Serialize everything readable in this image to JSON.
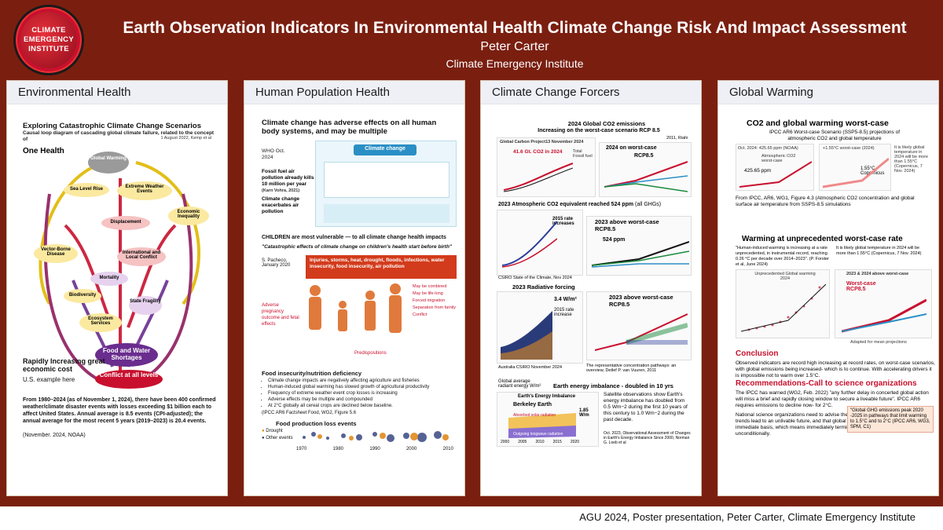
{
  "header": {
    "logo_text": [
      "CLIMATE",
      "EMERGENCY",
      "INSTITUTE"
    ],
    "title": "Earth Observation Indicators In Environmental Health Climate Change Risk And Impact Assessment",
    "author": "Peter Carter",
    "institute": "Climate Emergency Institute"
  },
  "panels": {
    "env": {
      "title": "Environmental Health",
      "heading": "Exploring Catastrophic Climate Change Scenarios",
      "subheading": "Causal loop diagram of cascading global climate failure, related to the concept of",
      "one_health": "One Health",
      "citation": "1 August 2022, Kemp et al",
      "nodes": [
        "Global Warming",
        "Sea Level Rise",
        "Extreme Weather Events",
        "Economic Inequality",
        "Displacement",
        "Vector-Borne Disease",
        "International and Local Conflict",
        "Mortality",
        "Biodiversity",
        "State Fragility",
        "Ecosystem Services",
        "Food and Water Shortages"
      ],
      "conflict": "Conflict at all levels",
      "rapid": "Rapidly Increasing great economic cost",
      "us_example": "U.S. example here",
      "body": "From 1980–2024 (as of November 1, 2024), there have been 400 confirmed weather/climate disaster events with losses exceeding $1 billion each to affect United States. Annual average is 8.5 events (CPI-adjusted); the annual average for the most recent 5 years (2019–2023) is 20.4 events.",
      "source": "(November. 2024, NOAA)"
    },
    "hph": {
      "title": "Human Population Health",
      "heading": "Climate change has adverse effects on all human body systems, and may be multiple",
      "who": "WHO Oct. 2024",
      "fossil": "Fossil fuel air pollution already kills 10 million per year",
      "fossil_src": "(Karn Vohra, 2021)",
      "exacerbates": "Climate change exacerbates air pollution",
      "cc_label": "Climate change",
      "children": "CHILDREN are most vulnerable — to all climate change health impacts",
      "quote": "\"Catastrophic effects of climate change on children's health start before birth\"",
      "quote_src": "S. Pacheco, January 2020",
      "injuries": "Injuries, storms, heat, drought, floods, infections, water insecurity, food insecurity, air pollution",
      "list": [
        "May be combined",
        "May be life-long",
        "Forced migration",
        "Separation from family",
        "Conflict"
      ],
      "adverse": "Adverse pregnancy outcome and fetal effects",
      "predispositions": "Predispositions",
      "food_title": "Food insecurity/nutrition deficiency",
      "food_bullets": [
        "Climate change impacts are negatively affecting agriculture and fisheries",
        "Human-induced global warming has slowed growth of agricultural productivity",
        "Frequency of extreme weather event crop losses is increasing",
        "Adverse effects may be multiple and compounded",
        "At 2°C globally all cereal crops are declined below baseline."
      ],
      "food_src": "(IPCC AR6 Factsheet Food, WG2, Figure 5.6",
      "loss_title": "Food production loss events",
      "legend": [
        "Drought",
        "Other events"
      ],
      "years": [
        "1970",
        "1980",
        "1990",
        "2000",
        "2010"
      ]
    },
    "ccf": {
      "title": "Climate Change Forcers",
      "co2_title": "2024 Global CO2 emissions",
      "co2_sub": "Increasing on the worst-case scenario RCP 8.5",
      "gcp": "Global Carbon Project13 November 2024",
      "gtco2": "41.6 Gt. CO2 in 2024",
      "total": "Total",
      "fossil": "Fossil fuel",
      "on_worst": "2024 on worst-case",
      "rcp85": "RCP8.5",
      "riahi": "2011, Riahi",
      "co2e_title": "2023 Atmospheric CO2 equivalent reached 524 ppm",
      "co2e_all": "(all GHGs)",
      "ppm": "524 ppm",
      "rate_inc": "2015 rate increases",
      "above_worst": "2023 above worst-case RCP8.5",
      "csiro": "CSIRO State of the Climate, Nov 2024",
      "rf_title": "2023 Radiative forcing",
      "rf_value": "3.4 W/m²",
      "rf_rate": "2015 rate increase",
      "rf_src": "Australia CSIRO November 2024",
      "rf_above": "2023 above worst-case RCP8.5",
      "rcp_src": "The representative concentration pathways: an overview, Detlef P. van Vuuren, 2011",
      "eei_title": "Earth energy imbalance - doubled in 10 yrs",
      "eei_label": "Global average radiant energy W/m²",
      "eei_sub": "Earth's Energy Imbalance",
      "berkeley": "Berkeley Earth",
      "eei_value": "1.85 W/m",
      "eei_text": "Satellite observations show Earth's energy imbalance has doubled from 0.5 Wm−2 during the first 10 years of this century to 1.0 Wm−2 during the past decade.",
      "eei_src": "Oct. 2023, Observational Assessment of Changes in Earth's Energy Imbalance Since 2000, Norman G. Loeb et al",
      "eei_absorbed": "Absorbed solar radiation",
      "eei_outgoing": "Outgoing longwave radiation",
      "eei_years": [
        "2000",
        "2005",
        "2010",
        "2015",
        "2020"
      ]
    },
    "gw": {
      "title": "Global Warming",
      "heading": "CO2 and global warming worst-case",
      "sub": "IPCC AR6 Worst-case Scenario (SSP5-8.5) projections of atmospheric CO2 and global temperature",
      "oct": "Oct. 2024: 425.65 ppm (NOAA)",
      "worst": "+1.55°C worst-case (2024)",
      "atm": "Atmospheric CO2 worst-case",
      "ppm": "425.65 ppm",
      "cop": "1.55°C Copernicus",
      "note": "It is likely global temperature in 2024 will be more than 1.55°C (Copernicus, 7 Nov. 2024)",
      "from": "From IPCC, AR6, WG1, Figure 4.3 (Atmospheric CO2 concentration and global surface air temperature from SSPS-8.5 simulations",
      "unprec": "Warming at unprecedented worst-case rate",
      "quote": "\"Human-induced warming is increasing at a rate unprecedented, in instrumental record, reaching 0.26 °C per decade over 2014–2023\". (P. Forster et al, June 2024)",
      "likely": "It is likely global temperature in 2024 will be more than 1.55°C (Copernicus, 7 Nov. 2024)",
      "unprec_global": "Unprecedented Global warming 2024",
      "above": "2023 & 2024 above worst-case",
      "worst_case": "Worst-case RCP8.5",
      "adapted": "Adapted for mean projections",
      "conclusion": "Conclusion",
      "concl_text": "Observed indicators are record high increasing at record rates, on worst-case scenarios, with global emissions being increased- which is to continue. With accelerating drivers it is impossible not to warm over 1.5°C.",
      "recs": "Recommendations-Call to science organizations",
      "recs_text": "The IPCC has warned (WG2, Feb. 2022) \"any further delay in concerted global action will miss a brief and rapidly closing window to secure a liveable future\". IPCC AR6 requires emissions to decline now- for 2°C.",
      "natl": "National science organizations need to advise their governments that current observed trends lead to an unlivable future, and that global emissions have to be declined on an immediate basis, which means immediately terminate all fossil fuel subsidies, unconditionally.",
      "peak": "\"Global GHG emissions peak 2020 -2025 in pathways that limit warming to 1.5°C and to 2°C (IPCC AR6, WG3, SPM, C1)"
    }
  },
  "footer": "AGU 2024, Poster presentation, Peter Carter, Climate Emergency Institute",
  "colors": {
    "background": "#7a1f10",
    "accent": "#c8102e",
    "panel_head": "#eef0f6"
  }
}
